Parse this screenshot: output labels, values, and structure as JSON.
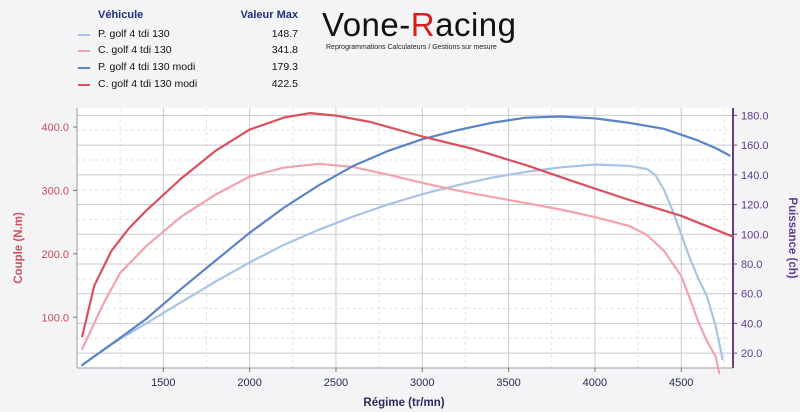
{
  "legend": {
    "header_vehicle": "Véhicule",
    "header_max": "Valeur Max",
    "entries": [
      {
        "name": "P. golf 4 tdi 130",
        "max": "148.7",
        "color": "#a9c3e6"
      },
      {
        "name": "C. golf 4 tdi 130",
        "max": "341.8",
        "color": "#f2a3ad"
      },
      {
        "name": "P. golf 4 tdi 130 modi",
        "max": "179.3",
        "color": "#5a84c6"
      },
      {
        "name": "C. golf 4 tdi 130 modi",
        "max": "422.5",
        "color": "#d9505f"
      }
    ]
  },
  "logo": {
    "word_start": "Vone-",
    "word_r": "R",
    "word_end": "acing",
    "tagline": "Reprogrammations Calculateurs / Gestions sur mesure"
  },
  "chart_data": {
    "type": "line",
    "xlabel": "Régime (tr/mn)",
    "ylabel_left": "Couple (N.m)",
    "ylabel_right": "Puissance (ch)",
    "xlim": [
      1000,
      4800
    ],
    "ylim_left": [
      20,
      430
    ],
    "ylim_right": [
      10,
      185
    ],
    "xticks": [
      1500,
      2000,
      2500,
      3000,
      3500,
      4000,
      4500
    ],
    "yticks_left": [
      "100.0",
      "200.0",
      "300.0",
      "400.0"
    ],
    "yticks_right": [
      "20.0",
      "40.0",
      "60.0",
      "80.0",
      "100.0",
      "120.0",
      "140.0",
      "160.0",
      "180.0"
    ],
    "grid": true,
    "series": [
      {
        "name": "P. golf 4 tdi 130",
        "axis": "right",
        "color": "#a9c3e6",
        "x": [
          1030,
          1200,
          1400,
          1600,
          1800,
          2000,
          2200,
          2400,
          2600,
          2800,
          3000,
          3200,
          3400,
          3600,
          3800,
          4000,
          4200,
          4300,
          4350,
          4400,
          4450,
          4500,
          4550,
          4600,
          4650,
          4700,
          4740
        ],
        "y": [
          12,
          26,
          40,
          54,
          68,
          81,
          93,
          103,
          112,
          120,
          127,
          133,
          138,
          142,
          145,
          147,
          146,
          144,
          140,
          130,
          116,
          100,
          84,
          70,
          58,
          38,
          16
        ]
      },
      {
        "name": "C. golf 4 tdi 130",
        "axis": "left",
        "color": "#f2a3ad",
        "x": [
          1030,
          1150,
          1250,
          1400,
          1600,
          1800,
          2000,
          2200,
          2400,
          2600,
          2800,
          3000,
          3200,
          3400,
          3600,
          3800,
          4000,
          4200,
          4300,
          4400,
          4500,
          4550,
          4600,
          4650,
          4700,
          4720
        ],
        "y": [
          50,
          120,
          170,
          212,
          258,
          293,
          322,
          336,
          342,
          337,
          325,
          312,
          300,
          290,
          280,
          270,
          258,
          244,
          230,
          205,
          165,
          130,
          92,
          62,
          38,
          12
        ]
      },
      {
        "name": "P. golf 4 tdi 130 modi",
        "axis": "right",
        "color": "#5a84c6",
        "x": [
          1030,
          1200,
          1400,
          1600,
          1800,
          2000,
          2200,
          2400,
          2600,
          2800,
          3000,
          3200,
          3400,
          3600,
          3800,
          4000,
          4200,
          4400,
          4500,
          4600,
          4700,
          4780
        ],
        "y": [
          12,
          26,
          43,
          63,
          82,
          101,
          118,
          133,
          146,
          156,
          164,
          170,
          175,
          178.5,
          179.3,
          178,
          175,
          171,
          167,
          163,
          158,
          153
        ]
      },
      {
        "name": "C. golf 4 tdi 130 modi",
        "axis": "left",
        "color": "#d9505f",
        "x": [
          1030,
          1100,
          1200,
          1300,
          1400,
          1500,
          1600,
          1800,
          2000,
          2200,
          2350,
          2500,
          2700,
          3000,
          3300,
          3600,
          3900,
          4200,
          4500,
          4800
        ],
        "y": [
          70,
          150,
          205,
          240,
          268,
          293,
          318,
          362,
          396,
          415,
          422,
          418,
          408,
          385,
          365,
          340,
          312,
          285,
          260,
          227
        ]
      }
    ]
  }
}
